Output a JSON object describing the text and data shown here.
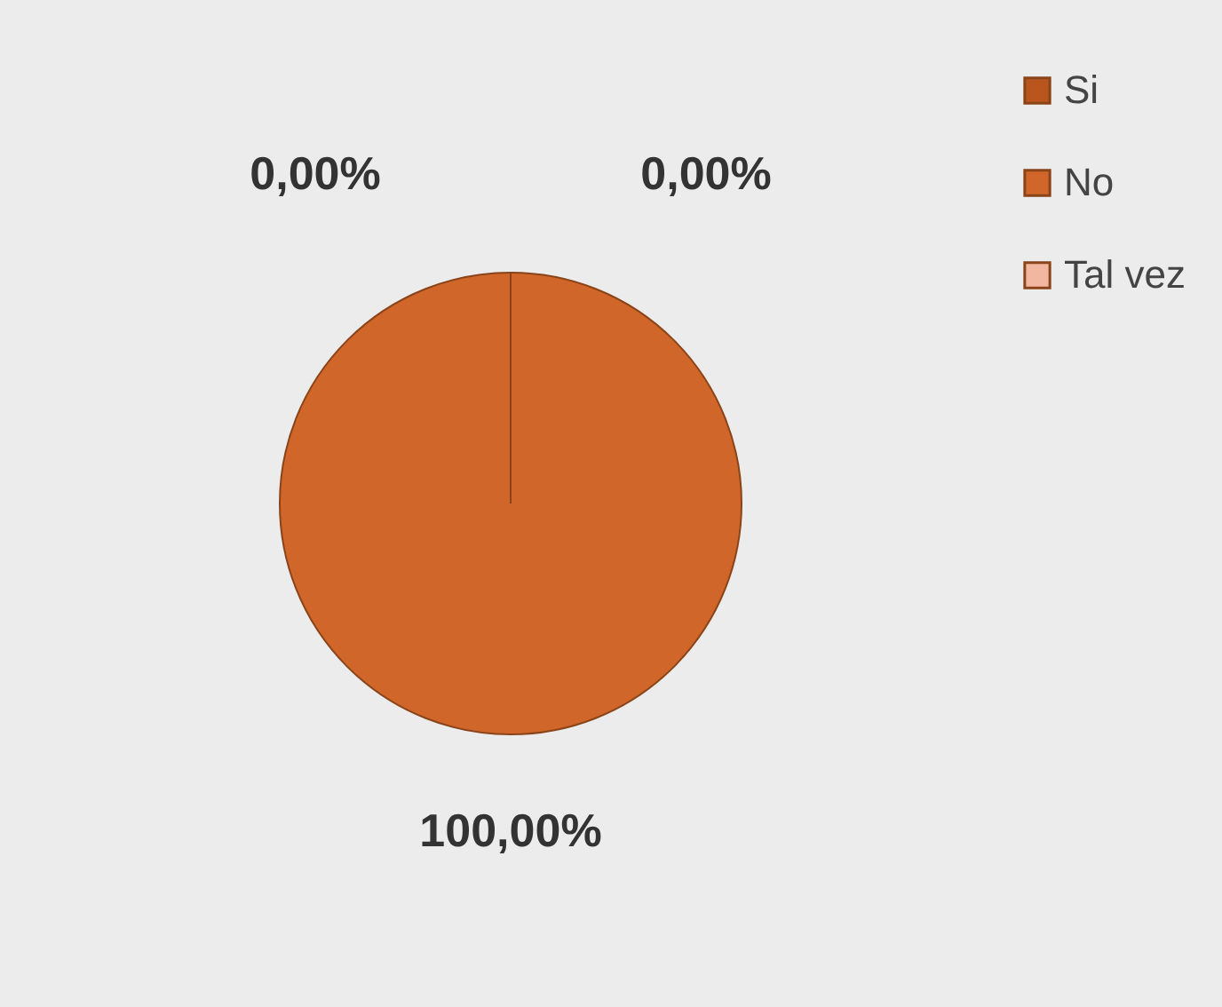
{
  "chart_data": {
    "type": "pie",
    "categories": [
      "Si",
      "No",
      "Tal vez"
    ],
    "values": [
      0,
      100,
      0
    ],
    "colors": [
      "#b8561e",
      "#d0662a",
      "#f2b7a0"
    ],
    "value_labels": [
      "0,00%",
      "100,00%",
      "0,00%"
    ],
    "legend": "right"
  }
}
